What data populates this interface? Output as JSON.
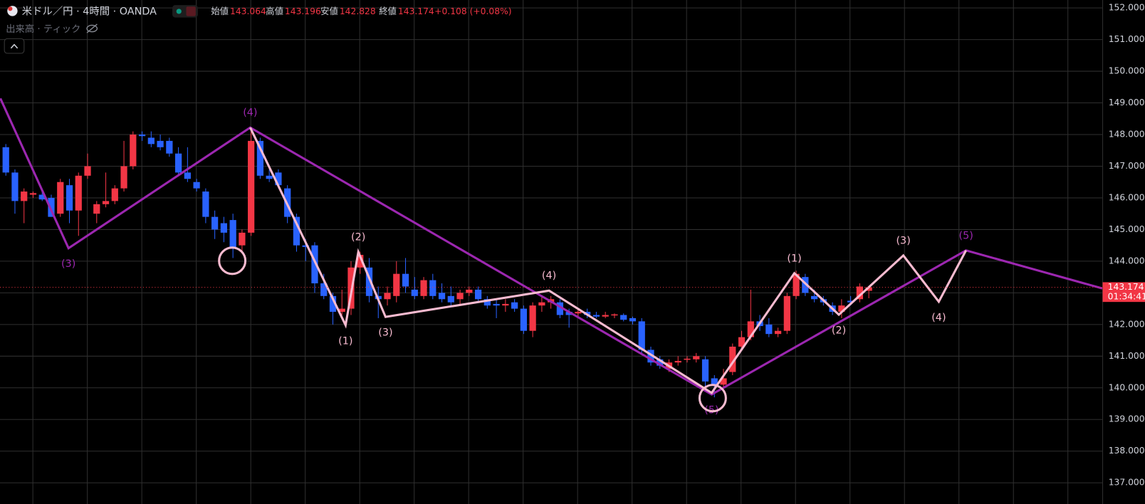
{
  "chart_data": {
    "type": "candlestick",
    "title": "米ドル／円 · 4時間 · OANDA",
    "subtitle": "出来高 · ティック",
    "ohlc_header": [
      {
        "label": "始値",
        "value": 143.064
      },
      {
        "label": "高値",
        "value": 143.196
      },
      {
        "label": "安値",
        "value": 142.828
      },
      {
        "label": "終値",
        "value": 143.174
      }
    ],
    "change": "+0.108 (+0.08%)",
    "up_color": "#f23645",
    "down_color": "#2962ff",
    "open": [
      147.6,
      146.8,
      145.9,
      146.1,
      146.1,
      146.0,
      145.5,
      146.4,
      145.6,
      146.7,
      145.5,
      145.8,
      145.9,
      146.3,
      147.0,
      148.0,
      147.9,
      147.8,
      147.8,
      147.4,
      146.8,
      146.5,
      146.2,
      145.4,
      145.2,
      145.3,
      144.5,
      144.9,
      147.8,
      146.7,
      146.8,
      146.3,
      145.4,
      144.5,
      144.5,
      143.3,
      142.9,
      142.4,
      142.5,
      143.8,
      143.8,
      142.9,
      142.8,
      142.9,
      143.6,
      143.1,
      142.9,
      143.4,
      143.0,
      142.9,
      142.8,
      143.0,
      143.1,
      142.8,
      142.65,
      142.6,
      142.7,
      142.5,
      141.8,
      142.6,
      142.7,
      142.7,
      142.4,
      142.35,
      142.4,
      142.3,
      142.25,
      142.3,
      142.3,
      142.2,
      142.1,
      141.2,
      140.9,
      140.6,
      140.8,
      140.9,
      140.9,
      140.9,
      140.3,
      140.1,
      140.5,
      141.3,
      141.6,
      142.1,
      142.0,
      141.7,
      141.8,
      142.9,
      143.5,
      142.9,
      142.8,
      142.6,
      142.4,
      142.75,
      142.8,
      143.064
    ],
    "high": [
      147.7,
      146.9,
      146.3,
      146.2,
      146.2,
      146.1,
      146.6,
      146.6,
      146.8,
      147.4,
      145.9,
      146.8,
      146.4,
      147.8,
      148.1,
      148.1,
      148.1,
      148.0,
      147.9,
      147.6,
      147.6,
      146.6,
      146.3,
      145.6,
      145.4,
      145.5,
      145.0,
      148.2,
      147.9,
      146.9,
      146.9,
      146.4,
      145.5,
      144.7,
      144.6,
      143.6,
      143.0,
      143.1,
      144.0,
      144.3,
      144.1,
      143.2,
      143.2,
      144.0,
      144.1,
      143.5,
      143.5,
      143.6,
      143.3,
      143.2,
      143.1,
      143.2,
      143.2,
      142.9,
      142.8,
      142.8,
      142.8,
      142.6,
      142.7,
      142.9,
      142.9,
      142.8,
      142.5,
      142.5,
      142.5,
      142.4,
      142.4,
      142.35,
      142.35,
      142.25,
      142.2,
      141.3,
      141.0,
      140.9,
      141.0,
      141.0,
      141.1,
      141.0,
      140.4,
      140.6,
      141.4,
      141.8,
      143.1,
      142.3,
      142.2,
      141.9,
      143.0,
      143.7,
      143.6,
      143.1,
      142.9,
      142.7,
      142.8,
      142.9,
      143.3,
      143.196
    ],
    "low": [
      146.7,
      145.5,
      145.2,
      146.0,
      145.9,
      145.4,
      145.4,
      145.2,
      144.8,
      146.6,
      145.2,
      145.7,
      145.8,
      146.2,
      146.9,
      147.8,
      147.6,
      147.5,
      147.3,
      146.7,
      146.5,
      146.2,
      145.2,
      144.7,
      144.6,
      144.1,
      144.3,
      144.8,
      146.6,
      146.5,
      146.3,
      145.2,
      144.3,
      144.0,
      143.0,
      142.8,
      142.0,
      142.3,
      142.3,
      143.6,
      142.7,
      142.2,
      142.6,
      142.7,
      143.0,
      142.8,
      142.8,
      142.8,
      142.7,
      142.6,
      142.6,
      142.9,
      142.7,
      142.5,
      142.2,
      142.4,
      142.4,
      141.7,
      141.6,
      142.4,
      142.5,
      142.2,
      141.9,
      142.2,
      142.2,
      142.2,
      142.2,
      142.2,
      142.1,
      142.0,
      141.1,
      140.7,
      140.6,
      140.5,
      140.7,
      140.8,
      140.8,
      140.0,
      139.7,
      140.0,
      140.4,
      141.2,
      141.5,
      141.8,
      141.6,
      141.6,
      141.7,
      142.8,
      142.9,
      142.7,
      142.6,
      142.3,
      142.2,
      142.6,
      142.7,
      142.828
    ],
    "close": [
      146.8,
      145.9,
      146.2,
      146.15,
      145.95,
      145.4,
      146.5,
      145.6,
      146.7,
      147.0,
      145.8,
      145.9,
      146.3,
      147.0,
      148.0,
      147.95,
      147.7,
      147.6,
      147.4,
      146.8,
      146.6,
      146.3,
      145.4,
      145.0,
      144.9,
      144.4,
      144.9,
      147.8,
      146.7,
      146.6,
      146.4,
      145.4,
      144.5,
      144.45,
      143.3,
      142.9,
      142.4,
      142.5,
      143.8,
      144.2,
      142.9,
      142.8,
      143.0,
      143.6,
      143.2,
      142.9,
      143.4,
      142.9,
      142.8,
      142.7,
      143.0,
      143.1,
      142.8,
      142.6,
      142.6,
      142.65,
      142.5,
      141.8,
      142.6,
      142.7,
      142.8,
      142.3,
      142.3,
      142.4,
      142.3,
      142.25,
      142.3,
      142.32,
      142.15,
      142.1,
      141.2,
      140.8,
      140.7,
      140.8,
      140.85,
      140.92,
      141.0,
      140.2,
      140.1,
      140.3,
      141.3,
      141.6,
      142.1,
      141.95,
      141.7,
      141.8,
      142.9,
      143.6,
      143.0,
      142.8,
      142.7,
      142.4,
      142.6,
      142.7,
      143.2,
      143.174
    ],
    "ylim": [
      136.33,
      152.25
    ],
    "yticks": [
      {
        "value": 137,
        "label": "137.000"
      },
      {
        "value": 138,
        "label": "138.000"
      },
      {
        "value": 139,
        "label": "139.000"
      },
      {
        "value": 140,
        "label": "140.000"
      },
      {
        "value": 141,
        "label": "141.000"
      },
      {
        "value": 142,
        "label": "142.000"
      },
      {
        "value": 143,
        "label": "143.000"
      },
      {
        "value": 144,
        "label": "144.000"
      },
      {
        "value": 145,
        "label": "145.000"
      },
      {
        "value": 146,
        "label": "146.000"
      },
      {
        "value": 147,
        "label": "147.000"
      },
      {
        "value": 148,
        "label": "148.000"
      },
      {
        "value": 149,
        "label": "149.000"
      },
      {
        "value": 150,
        "label": "150.000"
      },
      {
        "value": 151,
        "label": "151.000"
      },
      {
        "value": 152,
        "label": "152.000"
      }
    ],
    "grid": true,
    "last_price": 143.174,
    "countdown": "01:34:41",
    "waves": [
      {
        "color": "#9c27b0",
        "x": [
          -0.6,
          6.9,
          26.9,
          77.7,
          105.7,
          120.7
        ],
        "values": [
          149.14,
          144.41,
          148.22,
          139.79,
          144.34,
          143.14
        ],
        "labels": [
          null,
          "(3)",
          "(4)",
          "(5)",
          "(5)",
          null
        ]
      },
      {
        "color": "#f8bbd0",
        "x": [
          26.9,
          37.4,
          38.8,
          41.8,
          59.8,
          77.7,
          86.8,
          91.7,
          98.8,
          102.7,
          105.7
        ],
        "values": [
          148.22,
          141.98,
          144.29,
          142.24,
          143.07,
          139.84,
          143.62,
          142.31,
          144.18,
          142.72,
          144.34
        ],
        "labels": [
          null,
          "(1)",
          "(2)",
          "(3)",
          "(4)",
          null,
          "(1)",
          "(2)",
          "(3)",
          "(4)",
          null
        ]
      }
    ]
  }
}
